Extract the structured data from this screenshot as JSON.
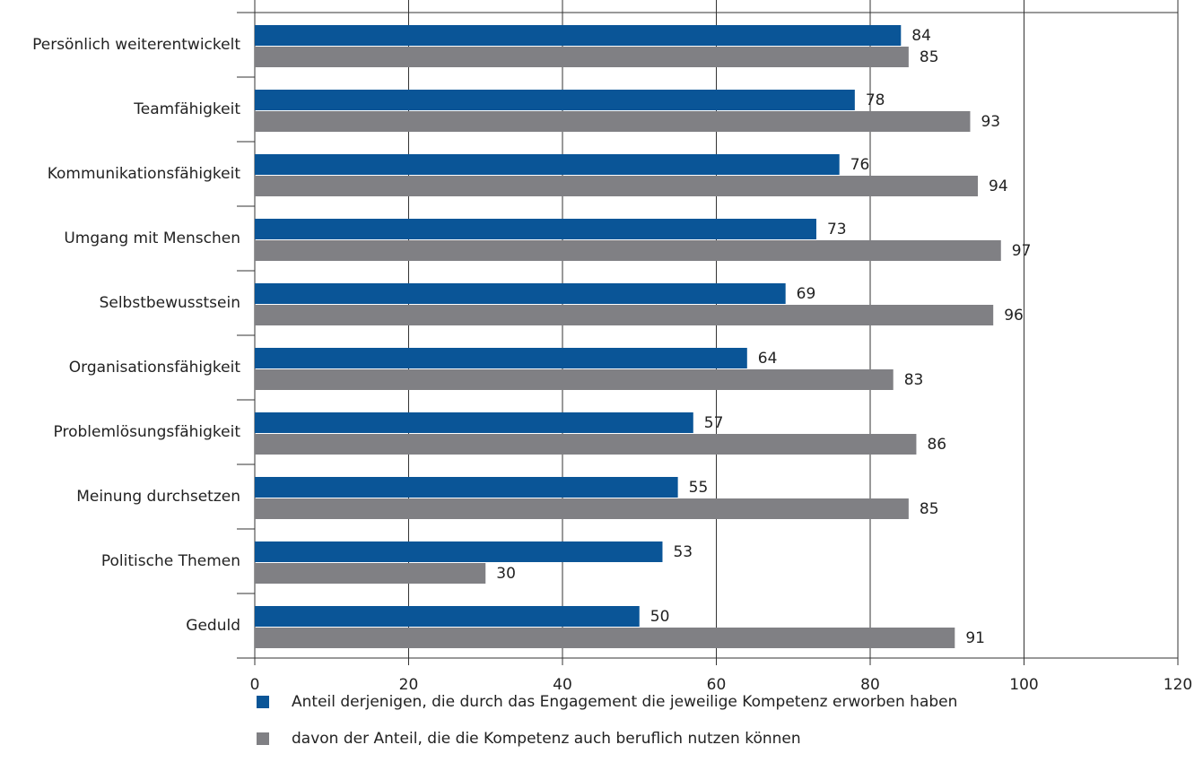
{
  "chart_data": {
    "type": "bar",
    "orientation": "horizontal",
    "categories": [
      "Persönlich weiterentwickelt",
      "Teamfähigkeit",
      "Kommunikationsfähigkeit",
      "Umgang mit Menschen",
      "Selbstbewusstsein",
      "Organisationsfähigkeit",
      "Problemlösungsfähigkeit",
      "Meinung durchsetzen",
      "Politische Themen",
      "Geduld"
    ],
    "series": [
      {
        "name": "Anteil derjenigen, die durch das Engagement die jeweilige Kompetenz erworben haben",
        "color": "#0a5597",
        "values": [
          84,
          78,
          76,
          73,
          69,
          64,
          57,
          55,
          53,
          50
        ]
      },
      {
        "name": "davon der Anteil, die die Kompetenz auch beruflich nutzen können",
        "color": "#808084",
        "values": [
          85,
          93,
          94,
          97,
          96,
          83,
          86,
          85,
          30,
          91
        ]
      }
    ],
    "xlim": [
      0,
      120
    ],
    "xticks": [
      0,
      20,
      40,
      60,
      80,
      100,
      120
    ],
    "grid": true,
    "legend": "bottom"
  }
}
